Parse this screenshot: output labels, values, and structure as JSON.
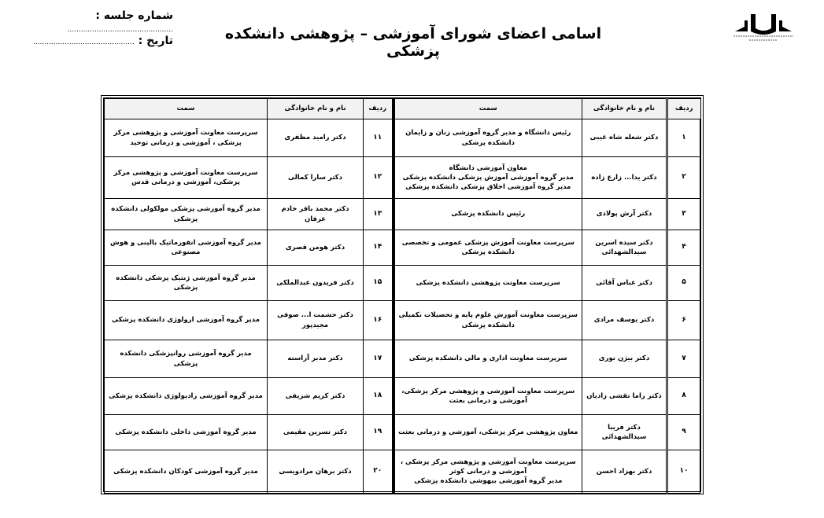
{
  "header": {
    "title": "اسامی اعضای شورای آموزشی – پژوهشی دانشکده پزشکی",
    "session_label": "شماره جلسه :",
    "session_value": "...............................................",
    "date_label": "تاریخ :",
    "date_value": ".............................................",
    "logo_text": "دانشگاه علوم پزشکی و خدمات بهداشتی درمانی کاشان - دانشکده پزشکی"
  },
  "table": {
    "columns": [
      "ردیف",
      "نام و نام خانوادگی",
      "سمت"
    ],
    "rows": [
      {
        "right": {
          "no": "۱",
          "name": "دکتر شعله شاه غیبی",
          "role": "رئیس دانشگاه و مدیر گروه آموزشی زنان و زایمان دانشکده پزشکی"
        },
        "left": {
          "no": "۱۱",
          "name": "دکتر رامید مظفری",
          "role": "سرپرست معاونت آموزشی و پژوهشی مرکز پزشکی ، آموزشی و درمانی توحید"
        }
      },
      {
        "right": {
          "no": "۲",
          "name": "دکتر یدا... زارع زاده",
          "role": "معاون آموزشی دانشگاه\nمدیر گروه آموزشی آموزش پزشکی دانشکده پزشکی\nمدیر گروه آموزشی اخلاق پزشکی دانشکده پزشکی"
        },
        "left": {
          "no": "۱۲",
          "name": "دکتر سارا کمالی",
          "role": "سرپرست معاونت آموزشی و پژوهشی مرکز پزشکی، آموزشی و درمانی قدس"
        }
      },
      {
        "right": {
          "no": "۳",
          "name": "دکتر آرش پولادی",
          "role": "رئیس دانشکده پزشکی"
        },
        "left": {
          "no": "۱۳",
          "name": "دکتر محمد باقر خادم عرفان",
          "role": "مدیر گروه آموزشی پزشکی مولکولی دانشکده پزشکی"
        }
      },
      {
        "right": {
          "no": "۴",
          "name": "دکتر سیده اسرین سیدالشهدائی",
          "role": "سرپرست معاونت آموزش پزشکی عمومی و تخصصی دانشکده پزشکی"
        },
        "left": {
          "no": "۱۴",
          "name": "دکتر هومن قصری",
          "role": "مدیر گروه آموزشی انفورماتیک بالینی و هوش مصنوعی"
        }
      },
      {
        "right": {
          "no": "۵",
          "name": "دکتر عباس آقائی",
          "role": "سرپرست معاونت پژوهشی دانشکده پزشکی"
        },
        "left": {
          "no": "۱۵",
          "name": "دکتر فریدون عبدالملکی",
          "role": "مدیر گروه آموزشی ژنتیک پزشکی دانشکده پزشکی"
        }
      },
      {
        "right": {
          "no": "۶",
          "name": "دکتر یوسف مرادی",
          "role": "سرپرست معاونت آموزش علوم پایه و تحصیلات تکمیلی دانشکده پزشکی"
        },
        "left": {
          "no": "۱۶",
          "name": "دکتر حشمت ا... صوفی مجیدپور",
          "role": "مدیر گروه آموزشی ارولوژی دانشکده پزشکی"
        }
      },
      {
        "right": {
          "no": "۷",
          "name": "دکتر بیژن نوری",
          "role": "سرپرست معاونت اداری و مالی دانشکده پزشکی"
        },
        "left": {
          "no": "۱۷",
          "name": "دکتر مدبر آراسته",
          "role": "مدیر گروه آموزشی روانپزشکی دانشکده پزشکی"
        }
      },
      {
        "right": {
          "no": "۸",
          "name": "دکتر راما نقشی زادیان",
          "role": "سرپرست معاونت آموزشی و پژوهشی مرکز پزشکی، آموزشی و درمانی بعثت"
        },
        "left": {
          "no": "۱۸",
          "name": "دکتر کریم شریفی",
          "role": "مدیر گروه آموزشی رادیولوژی دانشکده پزشکی"
        }
      },
      {
        "right": {
          "no": "۹",
          "name": "دکتر فریبا سیدالشهدائی",
          "role": "معاون پژوهشی مرکز پزشکی، آموزشی و درمانی بعثت"
        },
        "left": {
          "no": "۱۹",
          "name": "دکتر نسرین مقیمی",
          "role": "مدیر گروه آموزشی داخلی دانشکده پزشکی"
        }
      },
      {
        "right": {
          "no": "۱۰",
          "name": "دکتر بهزاد احسن",
          "role": "سرپرست معاونت آموزشی و پژوهشی مرکز پزشکی ، آموزشی و درمانی کوثر\nمدیر گروه آموزشی بیهوشی دانشکده پزشکی"
        },
        "left": {
          "no": "۲۰",
          "name": "دکتر برهان مرادویسی",
          "role": "مدیر گروه آموزشی کودکان دانشکده پزشکی"
        }
      }
    ]
  }
}
